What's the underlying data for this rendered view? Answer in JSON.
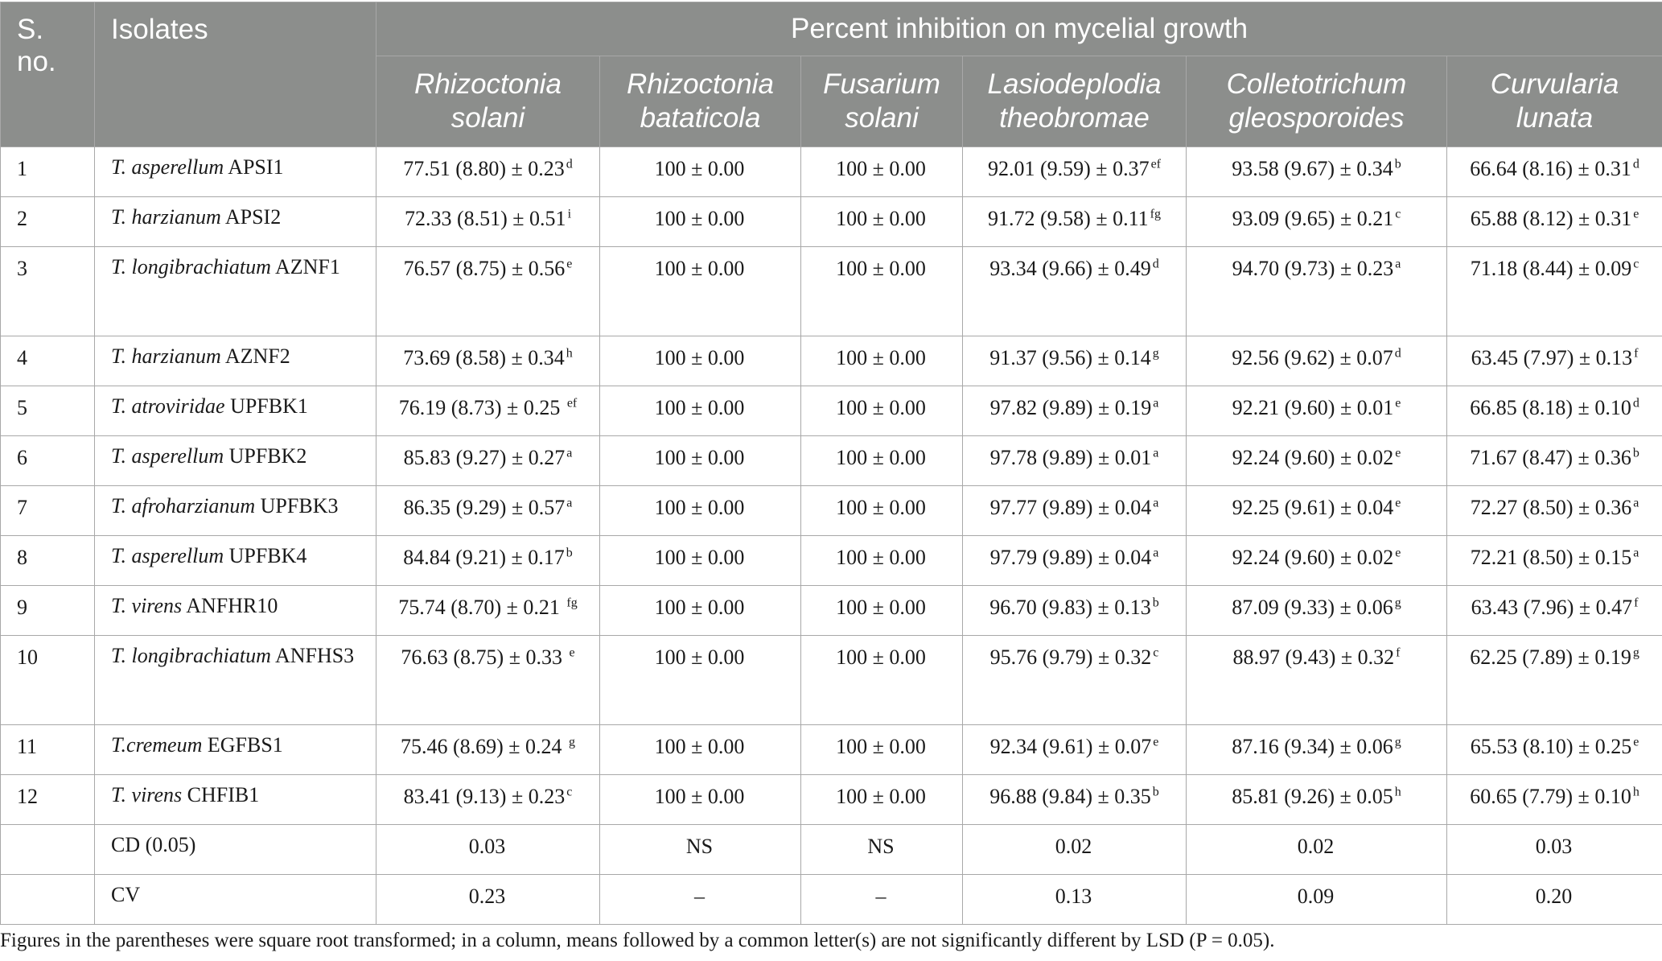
{
  "header": {
    "sno": "S. no.",
    "isolates": "Isolates",
    "group": "Percent inhibition on mycelial growth",
    "pathogens": [
      [
        "Rhizoctonia",
        "solani"
      ],
      [
        "Rhizoctonia",
        "bataticola"
      ],
      [
        "Fusarium",
        "solani"
      ],
      [
        "Lasiodeplodia",
        "theobromae"
      ],
      [
        "Colletotrichum",
        "gleosporoides"
      ],
      [
        "Curvularia",
        "lunata"
      ]
    ]
  },
  "rows": [
    {
      "sno": "1",
      "species": "T. asperellum",
      "strain": "APSI1",
      "tall": false,
      "values": [
        [
          "77.51 (8.80) ± 0.23",
          "d"
        ],
        [
          "100 ± 0.00",
          ""
        ],
        [
          "100 ± 0.00",
          ""
        ],
        [
          "92.01 (9.59) ± 0.37",
          "ef"
        ],
        [
          "93.58 (9.67) ± 0.34",
          "b"
        ],
        [
          "66.64 (8.16) ± 0.31",
          "d"
        ]
      ]
    },
    {
      "sno": "2",
      "species": "T. harzianum",
      "strain": "APSI2",
      "tall": false,
      "values": [
        [
          "72.33 (8.51) ± 0.51",
          "i"
        ],
        [
          "100 ± 0.00",
          ""
        ],
        [
          "100 ± 0.00",
          ""
        ],
        [
          "91.72 (9.58) ± 0.11",
          "fg"
        ],
        [
          "93.09 (9.65) ± 0.21",
          "c"
        ],
        [
          "65.88 (8.12) ± 0.31",
          "e"
        ]
      ]
    },
    {
      "sno": "3",
      "species": "T. longibrachiatum",
      "strain": "AZNF1",
      "tall": true,
      "values": [
        [
          "76.57 (8.75) ± 0.56",
          "e"
        ],
        [
          "100 ± 0.00",
          ""
        ],
        [
          "100 ± 0.00",
          ""
        ],
        [
          "93.34 (9.66) ± 0.49",
          "d"
        ],
        [
          "94.70 (9.73) ± 0.23",
          "a"
        ],
        [
          "71.18 (8.44) ± 0.09",
          "c"
        ]
      ]
    },
    {
      "sno": "4",
      "species": "T. harzianum",
      "strain": "AZNF2",
      "tall": false,
      "values": [
        [
          "73.69 (8.58) ± 0.34",
          "h"
        ],
        [
          "100 ± 0.00",
          ""
        ],
        [
          "100 ± 0.00",
          ""
        ],
        [
          "91.37 (9.56) ± 0.14",
          "g"
        ],
        [
          "92.56 (9.62) ± 0.07",
          "d"
        ],
        [
          "63.45 (7.97) ± 0.13",
          "f"
        ]
      ]
    },
    {
      "sno": "5",
      "species": "T. atroviridae",
      "strain": "UPFBK1",
      "tall": false,
      "values": [
        [
          "76.19 (8.73) ± 0.25 ",
          "ef"
        ],
        [
          "100 ± 0.00",
          ""
        ],
        [
          "100 ± 0.00",
          ""
        ],
        [
          "97.82 (9.89) ± 0.19",
          "a"
        ],
        [
          "92.21 (9.60) ± 0.01",
          "e"
        ],
        [
          "66.85 (8.18) ± 0.10",
          "d"
        ]
      ]
    },
    {
      "sno": "6",
      "species": "T. asperellum",
      "strain": "UPFBK2",
      "tall": false,
      "values": [
        [
          "85.83 (9.27) ± 0.27",
          "a"
        ],
        [
          "100 ± 0.00",
          ""
        ],
        [
          "100 ± 0.00",
          ""
        ],
        [
          "97.78 (9.89) ± 0.01",
          "a"
        ],
        [
          "92.24 (9.60) ± 0.02",
          "e"
        ],
        [
          "71.67 (8.47) ± 0.36",
          "b"
        ]
      ]
    },
    {
      "sno": "7",
      "species": "T. afroharzianum",
      "strain": "UPFBK3",
      "tall": false,
      "values": [
        [
          "86.35 (9.29) ± 0.57",
          "a"
        ],
        [
          "100 ± 0.00",
          ""
        ],
        [
          "100 ± 0.00",
          ""
        ],
        [
          "97.77 (9.89) ± 0.04",
          "a"
        ],
        [
          "92.25 (9.61) ± 0.04",
          "e"
        ],
        [
          "72.27 (8.50) ± 0.36",
          "a"
        ]
      ]
    },
    {
      "sno": "8",
      "species": "T. asperellum",
      "strain": "UPFBK4",
      "tall": false,
      "values": [
        [
          "84.84 (9.21) ± 0.17",
          "b"
        ],
        [
          "100 ± 0.00",
          ""
        ],
        [
          "100 ± 0.00",
          ""
        ],
        [
          "97.79 (9.89) ± 0.04",
          "a"
        ],
        [
          "92.24 (9.60) ± 0.02",
          "e"
        ],
        [
          "72.21 (8.50) ± 0.15",
          "a"
        ]
      ]
    },
    {
      "sno": "9",
      "species": "T. virens",
      "strain": "ANFHR10",
      "tall": false,
      "values": [
        [
          "75.74 (8.70) ± 0.21 ",
          "fg"
        ],
        [
          "100 ± 0.00",
          ""
        ],
        [
          "100 ± 0.00",
          ""
        ],
        [
          "96.70 (9.83) ± 0.13",
          "b"
        ],
        [
          "87.09 (9.33) ± 0.06",
          "g"
        ],
        [
          "63.43 (7.96) ± 0.47",
          "f"
        ]
      ]
    },
    {
      "sno": "10",
      "species": "T. longibrachiatum",
      "strain": "ANFHS3",
      "tall": true,
      "values": [
        [
          "76.63 (8.75) ± 0.33 ",
          "e"
        ],
        [
          "100 ± 0.00",
          ""
        ],
        [
          "100 ± 0.00",
          ""
        ],
        [
          "95.76 (9.79) ± 0.32",
          "c"
        ],
        [
          "88.97 (9.43) ± 0.32",
          "f"
        ],
        [
          "62.25 (7.89) ± 0.19",
          "g"
        ]
      ]
    },
    {
      "sno": "11",
      "species": "T.cremeum",
      "strain": "EGFBS1",
      "tall": false,
      "values": [
        [
          "75.46 (8.69) ± 0.24 ",
          "g"
        ],
        [
          "100 ± 0.00",
          ""
        ],
        [
          "100 ± 0.00",
          ""
        ],
        [
          "92.34 (9.61) ± 0.07",
          "e"
        ],
        [
          "87.16 (9.34) ± 0.06",
          "g"
        ],
        [
          "65.53 (8.10) ± 0.25",
          "e"
        ]
      ]
    },
    {
      "sno": "12",
      "species": "T. virens",
      "strain": "CHFIB1",
      "tall": false,
      "values": [
        [
          "83.41 (9.13) ± 0.23",
          "c"
        ],
        [
          "100 ± 0.00",
          ""
        ],
        [
          "100 ± 0.00",
          ""
        ],
        [
          "96.88 (9.84) ± 0.35",
          "b"
        ],
        [
          "85.81 (9.26) ± 0.05",
          "h"
        ],
        [
          "60.65 (7.79) ± 0.10",
          "h"
        ]
      ]
    },
    {
      "sno": "",
      "species": "",
      "strain": "CD (0.05)",
      "tall": false,
      "values": [
        [
          "0.03",
          ""
        ],
        [
          "NS",
          ""
        ],
        [
          "NS",
          ""
        ],
        [
          "0.02",
          ""
        ],
        [
          "0.02",
          ""
        ],
        [
          "0.03",
          ""
        ]
      ]
    },
    {
      "sno": "",
      "species": "",
      "strain": "CV",
      "tall": false,
      "values": [
        [
          "0.23",
          ""
        ],
        [
          "–",
          ""
        ],
        [
          "–",
          ""
        ],
        [
          "0.13",
          ""
        ],
        [
          "0.09",
          ""
        ],
        [
          "0.20",
          ""
        ]
      ]
    }
  ],
  "footnote": "Figures in the parentheses were square root transformed; in a column, means followed by a common letter(s) are not significantly different by LSD (P = 0.05)."
}
